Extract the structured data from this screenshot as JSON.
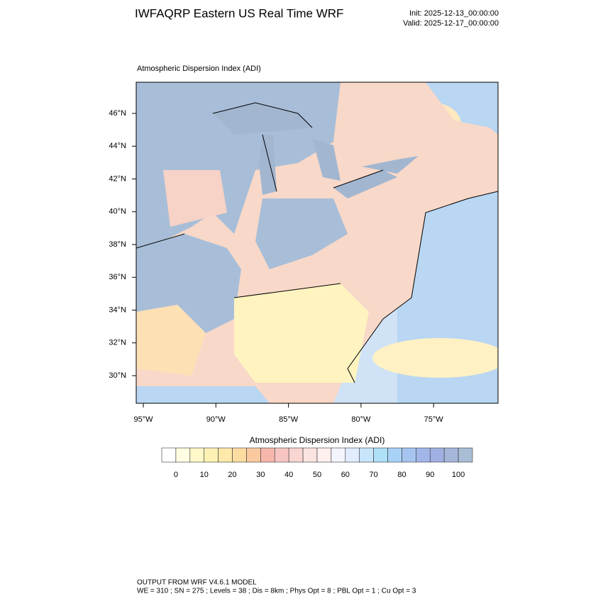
{
  "header": {
    "title": "IWFAQRP Eastern US Real Time WRF",
    "init": "Init: 2025-12-13_00:00:00",
    "valid": "Valid: 2025-12-17_00:00:00"
  },
  "map": {
    "subtitle": "Atmospheric Dispersion Index   (ADI)",
    "lat_labels": [
      "46°N",
      "44°N",
      "42°N",
      "40°N",
      "38°N",
      "36°N",
      "34°N",
      "32°N",
      "30°N"
    ],
    "lon_labels": [
      "95°W",
      "90°W",
      "85°W",
      "80°W",
      "75°W"
    ]
  },
  "colorbar": {
    "title": "Atmospheric Dispersion Index  (ADI)",
    "range": [
      -5,
      105
    ],
    "ticks": [
      0,
      10,
      20,
      30,
      40,
      50,
      60,
      70,
      80,
      90,
      100
    ],
    "colors": [
      "#ffffff",
      "#fffde2",
      "#fff8c8",
      "#fff1b4",
      "#fee8aa",
      "#fddca2",
      "#fbc9a0",
      "#f6b6aa",
      "#f7c6c2",
      "#f9d6d2",
      "#fbe4e0",
      "#fdf0ee",
      "#f4f4ff",
      "#e2ecff",
      "#c8e6fb",
      "#aee0f8",
      "#a8d2f6",
      "#a6c4f0",
      "#a2b6ea",
      "#a0b0e2",
      "#a4b6da",
      "#a9bed6"
    ]
  },
  "footer": {
    "line1": "OUTPUT FROM WRF V4.6.1 MODEL",
    "line2": "WE = 310 ; SN = 275 ; Levels = 38 ; Dis = 8km ; Phys Opt = 8 ; PBL Opt = 1 ; Cu Opt = 3"
  }
}
